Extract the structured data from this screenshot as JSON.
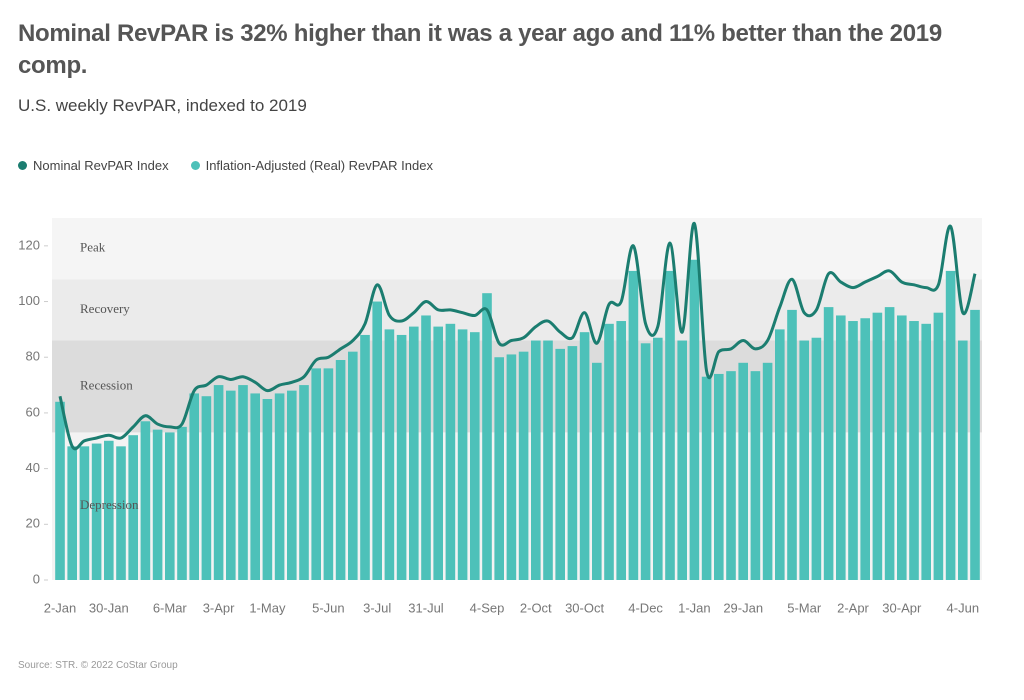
{
  "chart_data": {
    "type": "bar-line",
    "title": "Nominal RevPAR is 32% higher than it was a year ago and 11% better than the 2019 comp.",
    "subtitle": "U.S. weekly RevPAR, indexed to 2019",
    "source": "Source: STR. © 2022 CoStar Group",
    "categories": [
      "2-Jan",
      null,
      null,
      null,
      "30-Jan",
      null,
      null,
      null,
      null,
      "6-Mar",
      null,
      null,
      null,
      "3-Apr",
      null,
      null,
      null,
      "1-May",
      null,
      null,
      null,
      null,
      "5-Jun",
      null,
      null,
      null,
      "3-Jul",
      null,
      null,
      null,
      "31-Jul",
      null,
      null,
      null,
      null,
      "4-Sep",
      null,
      null,
      null,
      "2-Oct",
      null,
      null,
      null,
      "30-Oct",
      null,
      null,
      null,
      null,
      "4-Dec",
      null,
      null,
      null,
      "1-Jan",
      null,
      null,
      null,
      "29-Jan",
      null,
      null,
      null,
      null,
      "5-Mar",
      null,
      null,
      null,
      "2-Apr",
      null,
      null,
      null,
      "30-Apr",
      null,
      null,
      null,
      null,
      "4-Jun",
      null
    ],
    "series": [
      {
        "name": "Nominal RevPAR Index",
        "kind": "line",
        "color": "#1b7d70",
        "values": [
          66,
          48,
          50,
          51,
          52,
          51,
          55,
          59,
          56,
          55,
          56,
          68,
          70,
          73,
          72,
          73,
          71,
          68,
          70,
          71,
          73,
          79,
          80,
          83,
          86,
          92,
          106,
          95,
          93,
          96,
          100,
          97,
          97,
          96,
          95,
          97,
          85,
          86,
          87,
          91,
          93,
          89,
          87,
          96,
          85,
          99,
          100,
          120,
          92,
          91,
          121,
          89,
          128,
          75,
          82,
          83,
          86,
          83,
          86,
          98,
          108,
          96,
          97,
          110,
          107,
          105,
          107,
          109,
          111,
          107,
          106,
          105,
          106,
          127,
          96,
          110
        ]
      },
      {
        "name": "Inflation-Adjusted (Real) RevPAR Index",
        "kind": "bar",
        "color": "#4dc1b9",
        "values": [
          64,
          48,
          48,
          49,
          50,
          48,
          52,
          57,
          54,
          53,
          55,
          67,
          66,
          70,
          68,
          70,
          67,
          65,
          67,
          68,
          70,
          76,
          76,
          79,
          82,
          88,
          100,
          90,
          88,
          91,
          95,
          91,
          92,
          90,
          89,
          103,
          80,
          81,
          82,
          86,
          86,
          83,
          84,
          89,
          78,
          92,
          93,
          111,
          85,
          87,
          111,
          86,
          115,
          73,
          74,
          75,
          78,
          75,
          78,
          90,
          97,
          86,
          87,
          98,
          95,
          93,
          94,
          96,
          98,
          95,
          93,
          92,
          96,
          111,
          86,
          97
        ]
      }
    ],
    "bands": [
      {
        "label": "Depression",
        "from": 0,
        "to": 53,
        "color": "#f3f3f3"
      },
      {
        "label": "Recession",
        "from": 53,
        "to": 86,
        "color": "#dcdcdc"
      },
      {
        "label": "Recovery",
        "from": 86,
        "to": 108,
        "color": "#ebebeb"
      },
      {
        "label": "Peak",
        "from": 108,
        "to": 130,
        "color": "#f5f5f5"
      }
    ],
    "ylim": [
      0,
      130
    ],
    "yticks": [
      0,
      20,
      40,
      60,
      80,
      100,
      120
    ],
    "grid": false
  }
}
